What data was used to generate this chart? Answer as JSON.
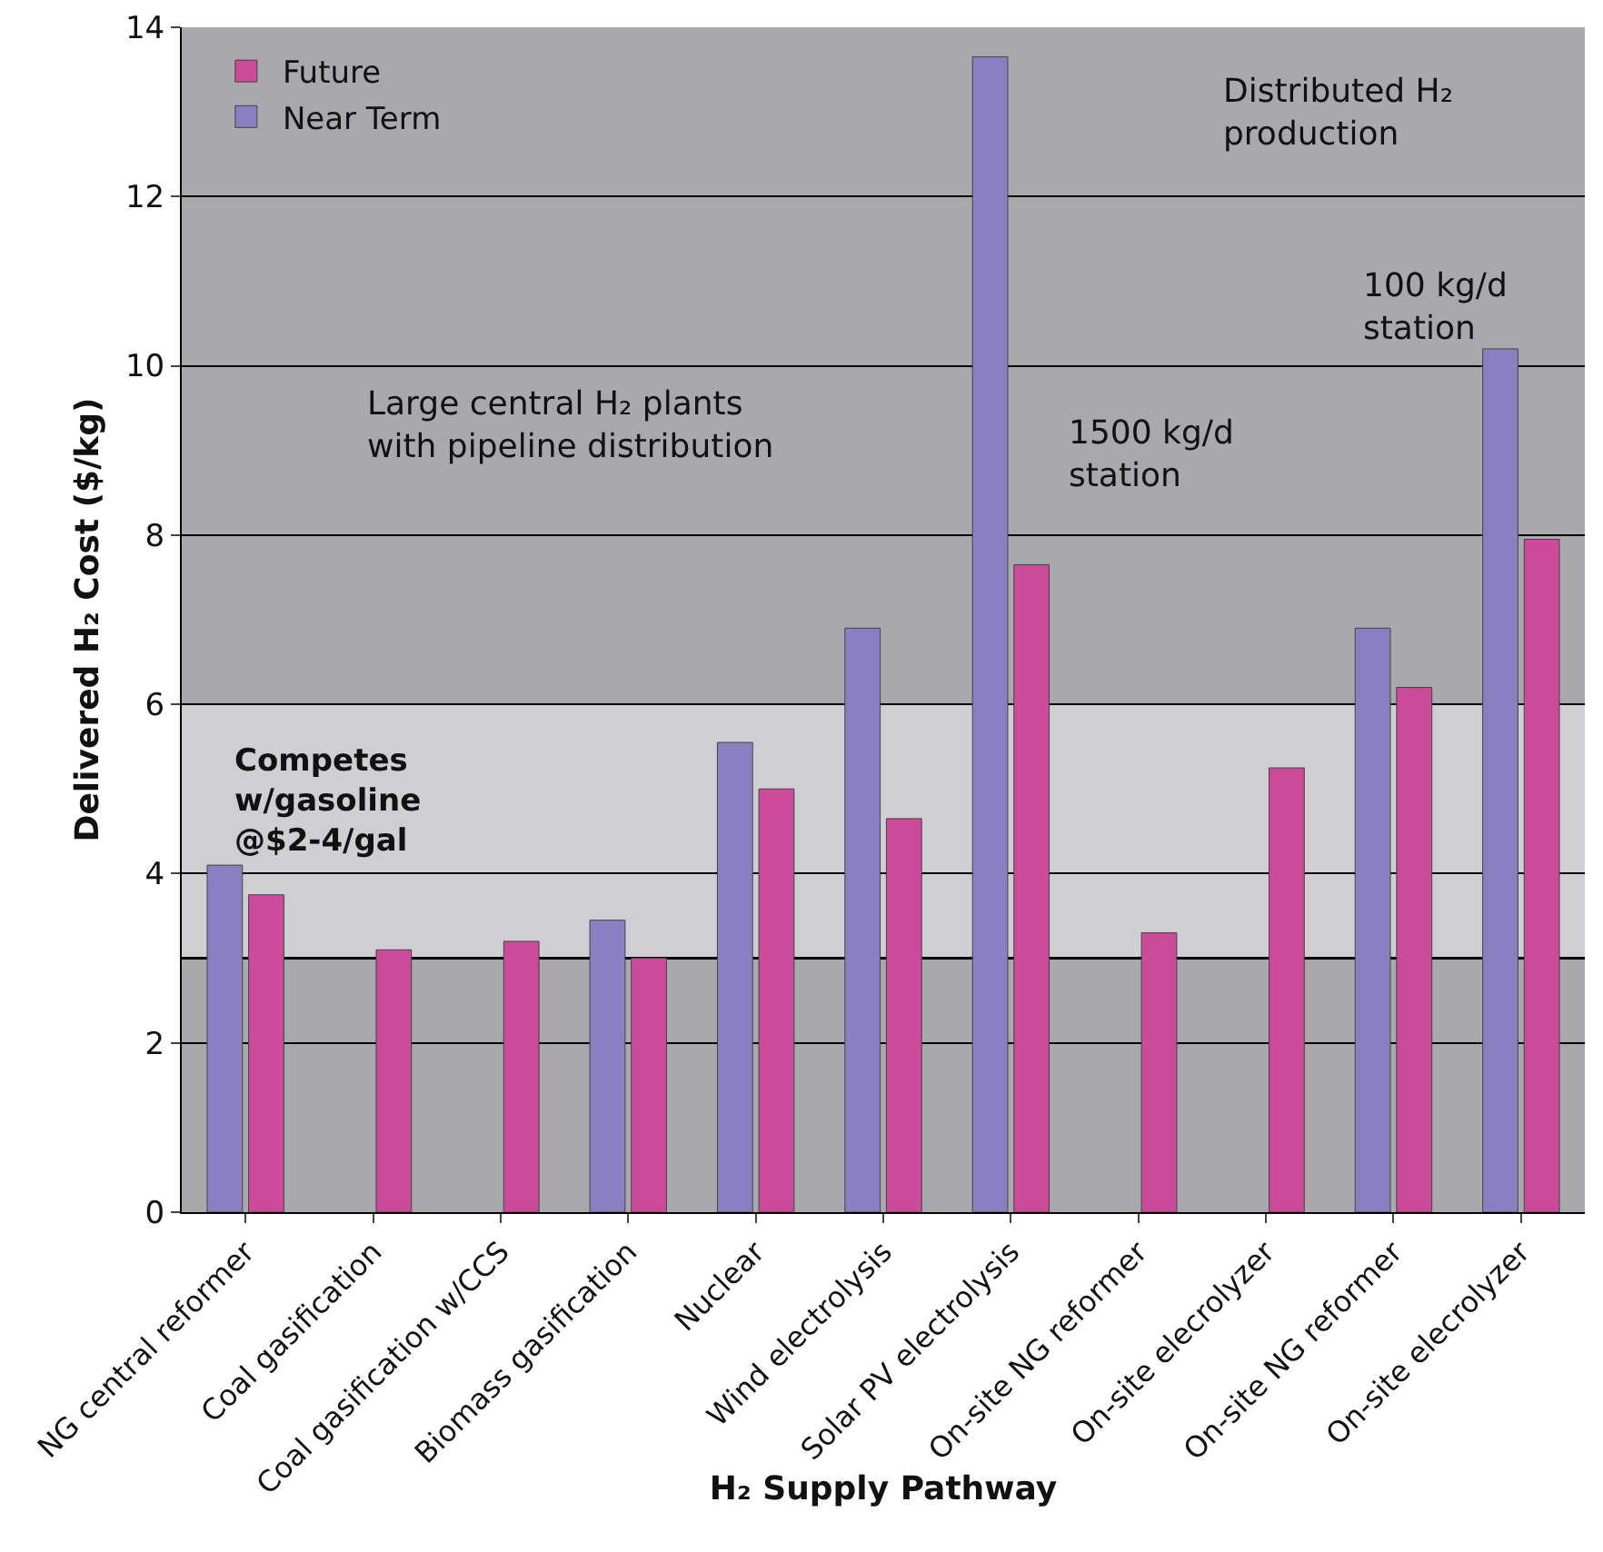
{
  "chart_data": {
    "type": "bar",
    "xlabel": "H₂ Supply Pathway",
    "ylabel": "Delivered H₂ Cost ($/kg)",
    "categories": [
      "NG central reformer",
      "Coal gasification",
      "Coal gasification w/CCS",
      "Biomass gasification",
      "Nuclear",
      "Wind electrolysis",
      "Solar PV electrolysis",
      "On-site NG reformer",
      "On-site elecrolyzer",
      "On-site NG reformer",
      "On-site elecrolyzer"
    ],
    "series": [
      {
        "name": "Near Term",
        "color": "#8a7fc0",
        "values": [
          4.1,
          null,
          null,
          3.45,
          5.55,
          6.9,
          13.65,
          null,
          null,
          6.9,
          10.2
        ]
      },
      {
        "name": "Future",
        "color": "#cc4a9a",
        "values": [
          3.75,
          3.1,
          3.2,
          3.0,
          5.0,
          4.65,
          7.65,
          3.3,
          5.25,
          6.2,
          7.95
        ]
      }
    ],
    "ylim": [
      0,
      14
    ],
    "yticks": [
      0,
      2,
      4,
      6,
      8,
      10,
      12,
      14
    ],
    "grid": "y",
    "legend": "top left",
    "ref_lines": [
      {
        "axis": "y",
        "value": 3
      }
    ],
    "bands": [
      {
        "axis": "y",
        "from": 3,
        "to": 6,
        "label": "Competes\nw/gasoline\n@$2-4/gal",
        "color": "#cfcfd3"
      }
    ],
    "annotations": [
      "Large central H₂ plants\nwith pipeline distribution",
      "1500 kg/d\nstation",
      "100 kg/d\nstation",
      "Distributed H₂\nproduction"
    ]
  }
}
